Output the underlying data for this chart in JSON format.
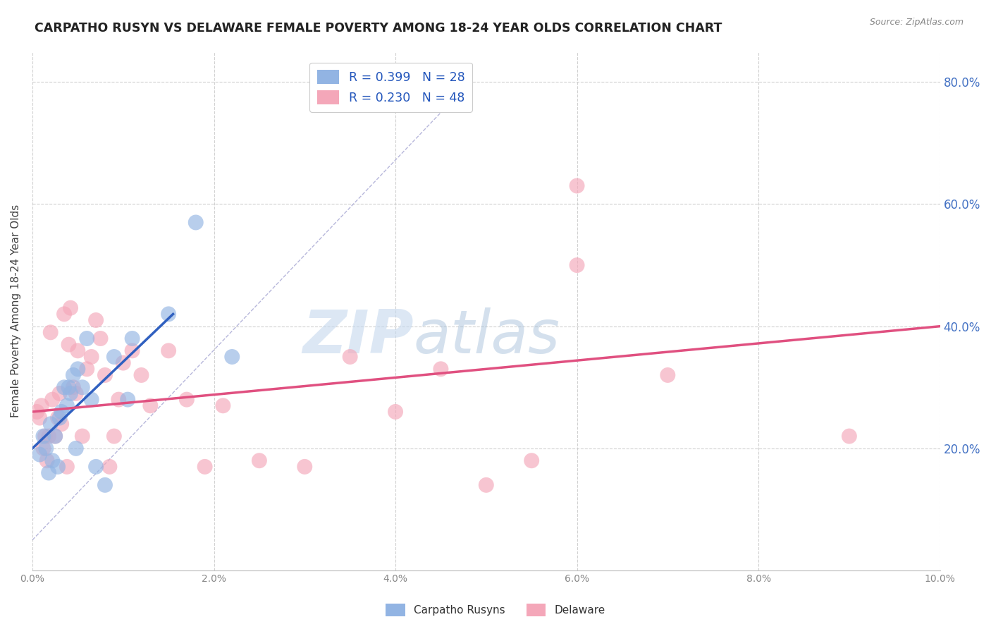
{
  "title": "CARPATHO RUSYN VS DELAWARE FEMALE POVERTY AMONG 18-24 YEAR OLDS CORRELATION CHART",
  "source": "Source: ZipAtlas.com",
  "ylabel": "Female Poverty Among 18-24 Year Olds",
  "xlim": [
    0.0,
    10.0
  ],
  "ylim": [
    0.0,
    85.0
  ],
  "yticks": [
    20.0,
    40.0,
    60.0,
    80.0
  ],
  "xticks": [
    0.0,
    2.0,
    4.0,
    6.0,
    8.0,
    10.0
  ],
  "legend_blue_r": "R = 0.399",
  "legend_blue_n": "N = 28",
  "legend_pink_r": "R = 0.230",
  "legend_pink_n": "N = 48",
  "blue_color": "#92b4e3",
  "pink_color": "#f4a7b9",
  "blue_line_color": "#3060c0",
  "pink_line_color": "#e05080",
  "watermark_zip": "ZIP",
  "watermark_atlas": "atlas",
  "blue_scatter_x": [
    0.08,
    0.12,
    0.15,
    0.18,
    0.2,
    0.22,
    0.25,
    0.28,
    0.3,
    0.32,
    0.35,
    0.38,
    0.4,
    0.42,
    0.45,
    0.48,
    0.5,
    0.55,
    0.6,
    0.65,
    0.7,
    0.8,
    0.9,
    1.05,
    1.1,
    1.5,
    1.8,
    2.2
  ],
  "blue_scatter_y": [
    19,
    22,
    20,
    16,
    24,
    18,
    22,
    17,
    25,
    26,
    30,
    27,
    30,
    29,
    32,
    20,
    33,
    30,
    38,
    28,
    17,
    14,
    35,
    28,
    38,
    42,
    57,
    35
  ],
  "pink_scatter_x": [
    0.05,
    0.08,
    0.1,
    0.12,
    0.14,
    0.16,
    0.18,
    0.2,
    0.22,
    0.25,
    0.28,
    0.3,
    0.32,
    0.35,
    0.38,
    0.4,
    0.42,
    0.45,
    0.48,
    0.5,
    0.55,
    0.6,
    0.65,
    0.7,
    0.75,
    0.8,
    0.85,
    0.9,
    0.95,
    1.0,
    1.1,
    1.2,
    1.3,
    1.5,
    1.7,
    1.9,
    2.1,
    2.5,
    3.0,
    3.5,
    4.0,
    4.5,
    5.0,
    5.5,
    6.0,
    6.0,
    7.0,
    9.0
  ],
  "pink_scatter_y": [
    26,
    25,
    27,
    20,
    22,
    18,
    22,
    39,
    28,
    22,
    25,
    29,
    24,
    42,
    17,
    37,
    43,
    30,
    29,
    36,
    22,
    33,
    35,
    41,
    38,
    32,
    17,
    22,
    28,
    34,
    36,
    32,
    27,
    36,
    28,
    17,
    27,
    18,
    17,
    35,
    26,
    33,
    14,
    18,
    63,
    50,
    32,
    22
  ],
  "blue_trend_x": [
    0.0,
    1.55
  ],
  "blue_trend_y": [
    20,
    42
  ],
  "pink_trend_x": [
    0.0,
    10.0
  ],
  "pink_trend_y": [
    26,
    40
  ],
  "ref_line_x": [
    0.0,
    4.5
  ],
  "ref_line_y": [
    5,
    75
  ],
  "background_color": "#ffffff",
  "grid_color": "#cccccc"
}
